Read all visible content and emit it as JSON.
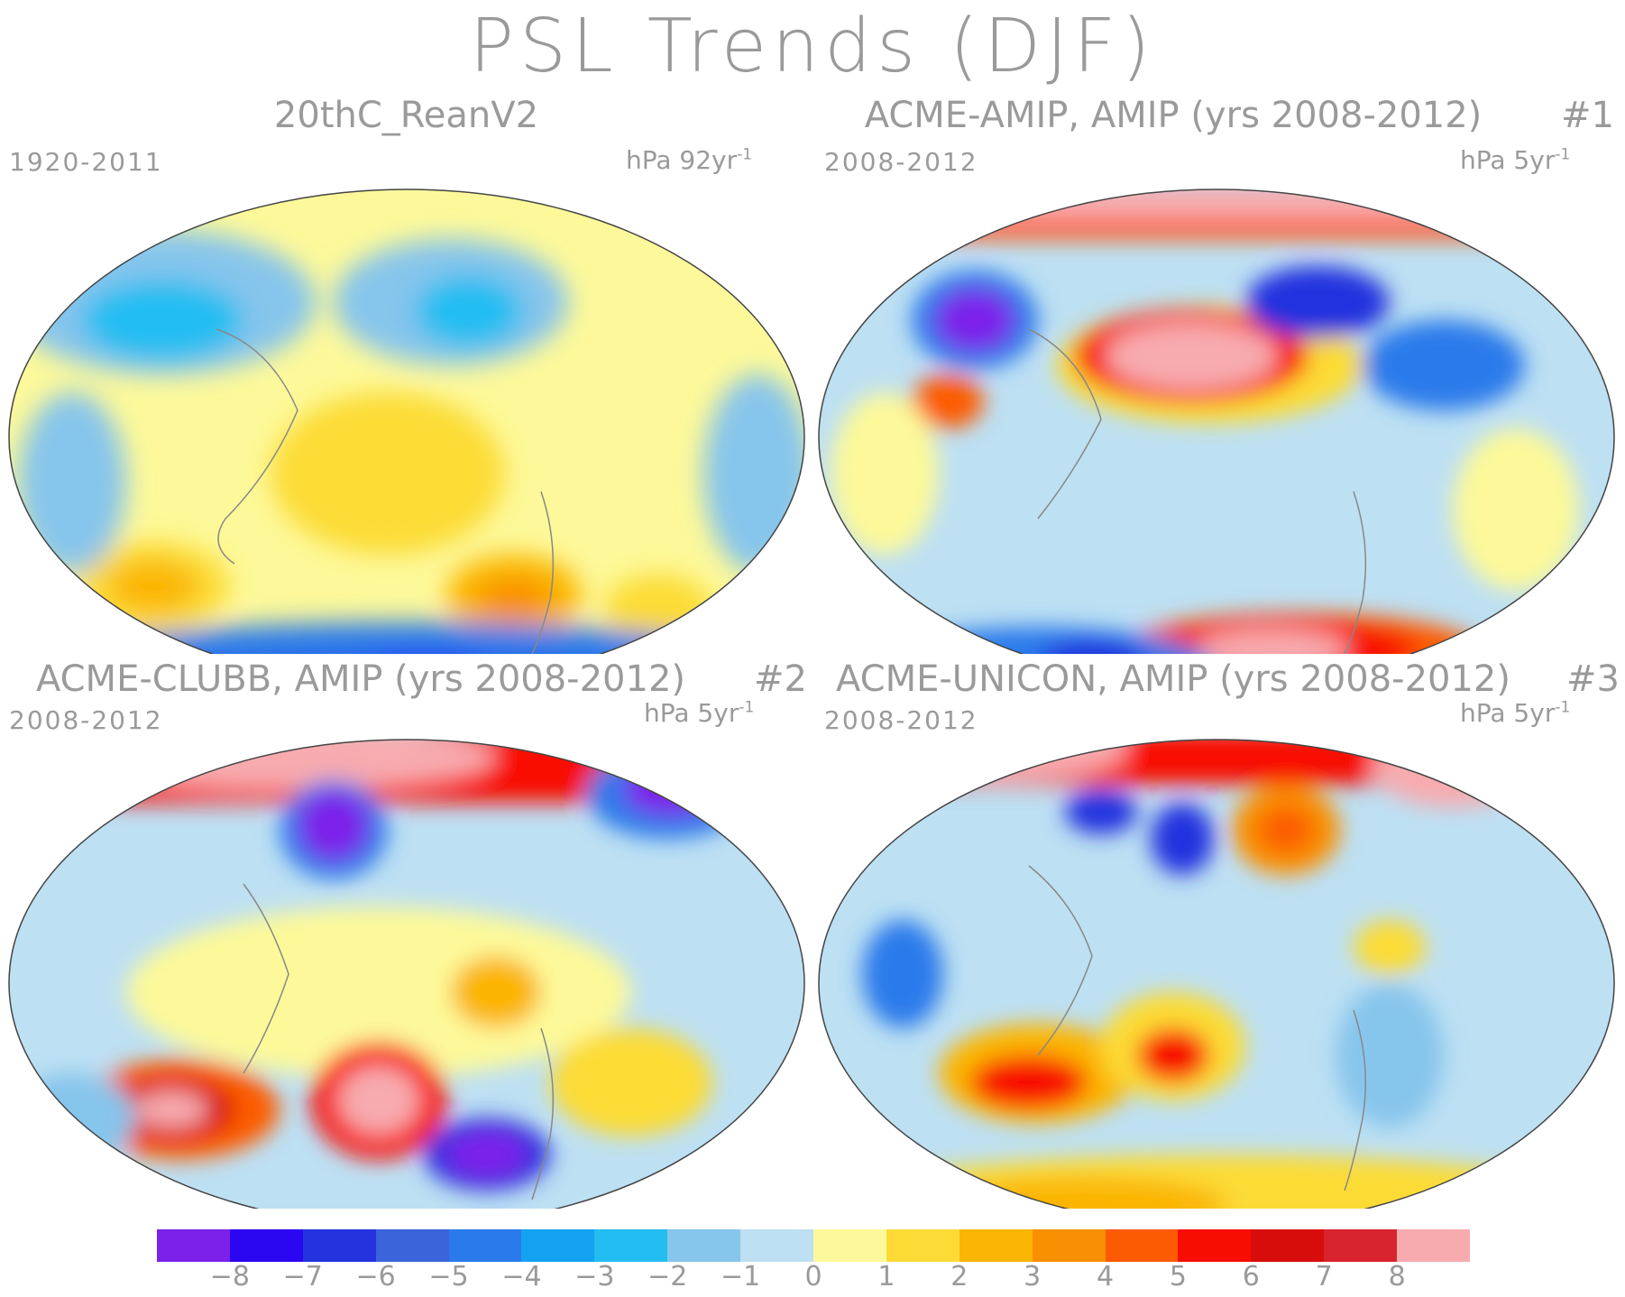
{
  "title": "PSL Trends (DJF)",
  "colors": [
    "#7c21ea",
    "#2b06f0",
    "#2433de",
    "#3b63da",
    "#2b7aeb",
    "#13a3f2",
    "#23bdf1",
    "#86c5ec",
    "#bde0f3",
    "#fdf99a",
    "#fcdb36",
    "#fbb505",
    "#f98f03",
    "#fc5b04",
    "#f80d03",
    "#d70d0c",
    "#d8242e",
    "#f7abaf"
  ],
  "colorbar": {
    "ticks": [
      "−8",
      "−7",
      "−6",
      "−5",
      "−4",
      "−3",
      "−2",
      "−1",
      "0",
      "1",
      "2",
      "3",
      "4",
      "5",
      "6",
      "7",
      "8"
    ]
  },
  "panels": [
    {
      "title": "20thC_ReanV2",
      "number": "",
      "period": "1920-2011",
      "units_main": "hPa 92yr",
      "units_sup": "-1"
    },
    {
      "title": "ACME-AMIP, AMIP (yrs 2008-2012)",
      "number": "#1",
      "period": "2008-2012",
      "units_main": "hPa 5yr",
      "units_sup": "-1"
    },
    {
      "title": "ACME-CLUBB, AMIP (yrs 2008-2012)",
      "number": "#2",
      "period": "2008-2012",
      "units_main": "hPa 5yr",
      "units_sup": "-1"
    },
    {
      "title": "ACME-UNICON, AMIP (yrs 2008-2012)",
      "number": "#3",
      "period": "2008-2012",
      "units_main": "hPa 5yr",
      "units_sup": "-1"
    }
  ]
}
